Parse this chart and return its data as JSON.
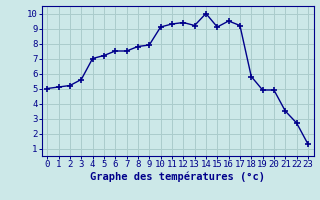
{
  "x": [
    0,
    1,
    2,
    3,
    4,
    5,
    6,
    7,
    8,
    9,
    10,
    11,
    12,
    13,
    14,
    15,
    16,
    17,
    18,
    19,
    20,
    21,
    22,
    23
  ],
  "y": [
    5.0,
    5.1,
    5.2,
    5.6,
    7.0,
    7.2,
    7.5,
    7.5,
    7.8,
    7.9,
    9.1,
    9.3,
    9.4,
    9.2,
    10.0,
    9.1,
    9.5,
    9.2,
    5.8,
    4.9,
    4.9,
    3.5,
    2.7,
    1.3
  ],
  "line_color": "#00008b",
  "marker": "+",
  "marker_size": 4,
  "bg_color": "#cce8e8",
  "grid_color": "#aacccc",
  "xlabel": "Graphe des températures (°c)",
  "xlabel_color": "#00008b",
  "xlabel_fontsize": 7.5,
  "tick_color": "#00008b",
  "tick_fontsize": 6.5,
  "ylim": [
    0.5,
    10.5
  ],
  "xlim": [
    -0.5,
    23.5
  ],
  "yticks": [
    1,
    2,
    3,
    4,
    5,
    6,
    7,
    8,
    9,
    10
  ],
  "xticks": [
    0,
    1,
    2,
    3,
    4,
    5,
    6,
    7,
    8,
    9,
    10,
    11,
    12,
    13,
    14,
    15,
    16,
    17,
    18,
    19,
    20,
    21,
    22,
    23
  ]
}
